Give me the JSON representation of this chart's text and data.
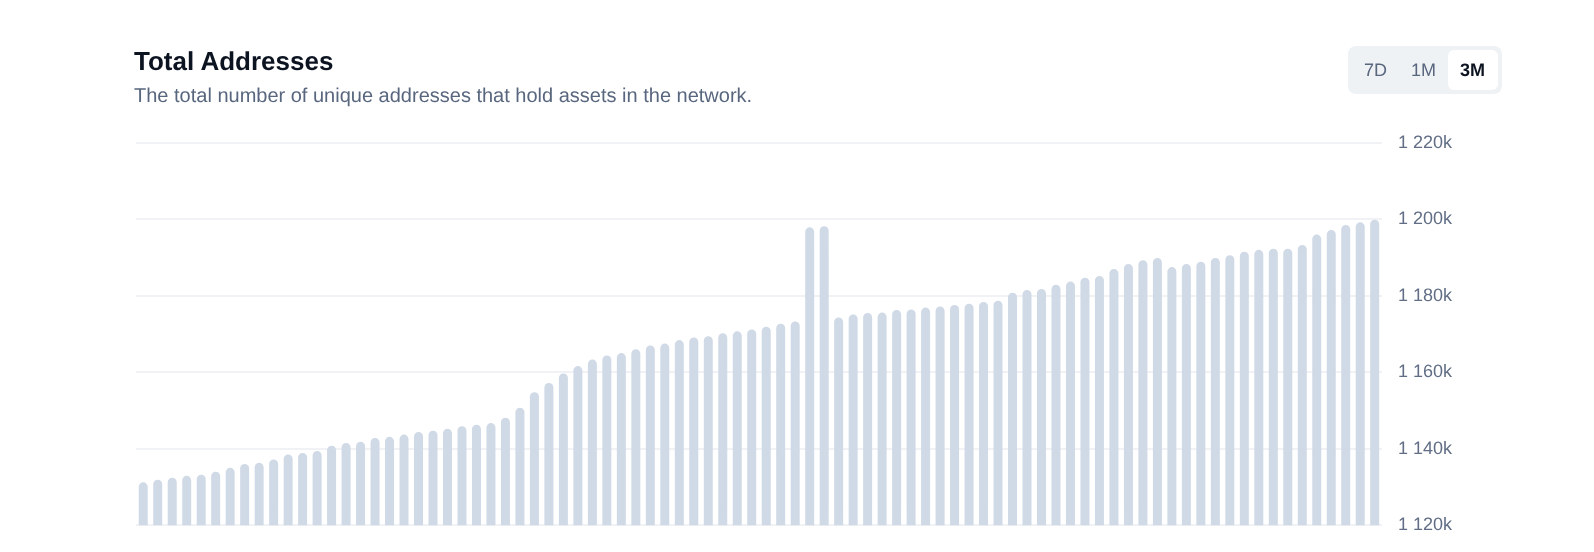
{
  "chart_data": {
    "type": "bar",
    "title": "Total Addresses",
    "subtitle": "The total number of unique addresses that hold assets in the network.",
    "annotations": [
      "7D",
      "1M",
      "3M"
    ],
    "categories": [
      null,
      null,
      null,
      null,
      null,
      null,
      null,
      null,
      null,
      null,
      null,
      null,
      null,
      null,
      null,
      null,
      null,
      null,
      null,
      null,
      null,
      null,
      null,
      null,
      null,
      null,
      null,
      null,
      null,
      null,
      null,
      null,
      null,
      null,
      null,
      null,
      null,
      null,
      null,
      null,
      null,
      null,
      null,
      null,
      null,
      null,
      null,
      null,
      null,
      null,
      null,
      null,
      null,
      null,
      null,
      null,
      null,
      null,
      null,
      null,
      null,
      null,
      null,
      null,
      null,
      null,
      null,
      null,
      null,
      null,
      null,
      null,
      null,
      null,
      null,
      null,
      null,
      null,
      null,
      null,
      null,
      null,
      null,
      null,
      null,
      null
    ],
    "values": [
      1131.2,
      1131.9,
      1132.4,
      1132.9,
      1133.2,
      1134.0,
      1135.0,
      1136.0,
      1136.3,
      1137.2,
      1138.5,
      1138.9,
      1139.4,
      1140.8,
      1141.5,
      1141.8,
      1142.8,
      1143.1,
      1143.7,
      1144.4,
      1144.7,
      1145.2,
      1145.9,
      1146.3,
      1146.7,
      1148.1,
      1150.7,
      1154.8,
      1157.2,
      1159.7,
      1161.6,
      1163.3,
      1164.4,
      1165.0,
      1166.0,
      1167.0,
      1167.5,
      1168.4,
      1169.1,
      1169.4,
      1170.2,
      1170.7,
      1171.2,
      1171.9,
      1172.7,
      1173.3,
      1197.9,
      1198.2,
      1174.3,
      1175.1,
      1175.5,
      1175.6,
      1176.3,
      1176.4,
      1176.9,
      1177.2,
      1177.6,
      1177.9,
      1178.4,
      1178.7,
      1180.8,
      1181.5,
      1181.8,
      1182.9,
      1183.7,
      1184.7,
      1185.2,
      1187.0,
      1188.3,
      1189.3,
      1189.9,
      1187.5,
      1188.3,
      1188.9,
      1189.9,
      1190.6,
      1191.5,
      1192.0,
      1192.3,
      1192.3,
      1193.3,
      1196.0,
      1197.2,
      1198.5,
      1199.2,
      1199.9
    ],
    "color": "#d0d9e6",
    "ylim": [
      1120,
      1220
    ],
    "yticks": [
      {
        "value": 1120,
        "label": "1 120k"
      },
      {
        "value": 1140,
        "label": "1 140k"
      },
      {
        "value": 1160,
        "label": "1 160k"
      },
      {
        "value": 1180,
        "label": "1 180k"
      },
      {
        "value": 1200,
        "label": "1 200k"
      },
      {
        "value": 1220,
        "label": "1 220k"
      }
    ],
    "grid": "y",
    "tick_labels": "y",
    "legend": false
  }
}
